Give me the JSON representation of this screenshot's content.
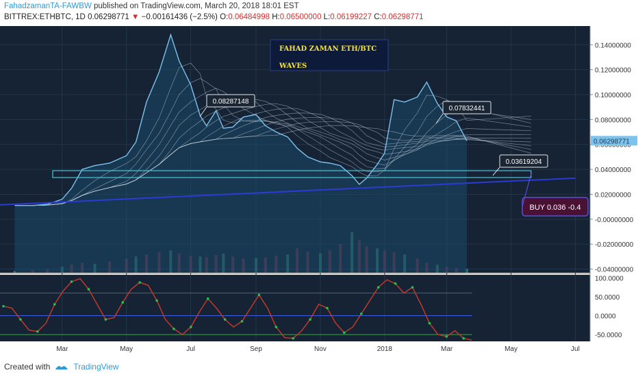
{
  "header": {
    "author": "FahadzamanTA-FAWBW",
    "published": "published on TradingView.com, March 20, 2018 18:01 EST",
    "symbol": "BITTREX:ETHBTC, 1D",
    "last": "0.06298771",
    "change": "−0.00161436 (−2.5%)",
    "o_label": "O:",
    "o": "0.06484998",
    "h_label": "H:",
    "h": "0.06500000",
    "l_label": "L:",
    "l": "0.06199227",
    "c_label": "C:",
    "c": "0.06298771"
  },
  "footer": {
    "created_with": "Created with",
    "brand": "TradingView"
  },
  "colors": {
    "panel_bg": "#152334",
    "price_line": "#7ec3ee",
    "area_fill": "#1c4a6a",
    "trendline": "#2b3bd6",
    "box": "#4fc3d9",
    "buy_box": "#4a1232",
    "buy_border": "#5a4fd6",
    "title_text": "#f5e23a",
    "osc_line": "#c0392b",
    "osc_dots": "#27c24c"
  },
  "annotations": {
    "title": "FAHAD ZAMAN ETH/BTC",
    "subtitle": "WAVES",
    "callouts": [
      "0.08287148",
      "0.07832441",
      "0.03619204"
    ],
    "buy": "BUY 0.036 -0.4",
    "price_tag": "0.06298771"
  },
  "chart_data": {
    "type": "line",
    "symbol": "BITTREX:ETHBTC",
    "interval": "1D",
    "x_ticks": [
      "Mar",
      "May",
      "Jul",
      "Sep",
      "Nov",
      "2018",
      "Mar",
      "May",
      "Jul"
    ],
    "y_ticks": [
      "0.14000000",
      "0.12000000",
      "0.10000000",
      "0.08000000",
      "0.06000000",
      "0.04000000",
      "0.02000000",
      "-0.00000000",
      "-0.02000000",
      "-0.04000000"
    ],
    "ylim": [
      -0.043,
      0.155
    ],
    "price_series": {
      "name": "ETHBTC close",
      "x": [
        "2017-01-15",
        "2017-02-01",
        "2017-02-15",
        "2017-03-01",
        "2017-03-10",
        "2017-03-20",
        "2017-04-01",
        "2017-04-15",
        "2017-05-01",
        "2017-05-10",
        "2017-05-20",
        "2017-06-01",
        "2017-06-12",
        "2017-06-20",
        "2017-07-01",
        "2017-07-10",
        "2017-07-16",
        "2017-07-25",
        "2017-08-01",
        "2017-08-10",
        "2017-08-20",
        "2017-09-01",
        "2017-09-10",
        "2017-09-20",
        "2017-10-01",
        "2017-10-10",
        "2017-10-20",
        "2017-11-01",
        "2017-11-10",
        "2017-11-20",
        "2017-12-01",
        "2017-12-08",
        "2017-12-15",
        "2017-12-25",
        "2018-01-01",
        "2018-01-10",
        "2018-01-20",
        "2018-02-01",
        "2018-02-10",
        "2018-02-20",
        "2018-03-01",
        "2018-03-10",
        "2018-03-20"
      ],
      "values": [
        0.011,
        0.011,
        0.012,
        0.016,
        0.025,
        0.04,
        0.043,
        0.045,
        0.051,
        0.062,
        0.094,
        0.118,
        0.148,
        0.127,
        0.108,
        0.083,
        0.075,
        0.087,
        0.073,
        0.074,
        0.082,
        0.084,
        0.075,
        0.07,
        0.066,
        0.057,
        0.05,
        0.046,
        0.045,
        0.043,
        0.035,
        0.028,
        0.033,
        0.044,
        0.053,
        0.096,
        0.094,
        0.098,
        0.11,
        0.093,
        0.082,
        0.079,
        0.063
      ]
    },
    "ribbon_last_values": [
      0.0828,
      0.08,
      0.077,
      0.074,
      0.071,
      0.068,
      0.065,
      0.062,
      0.059,
      0.056,
      0.053
    ],
    "support_level": 0.03619204,
    "trendline": {
      "from": [
        "2017-01-01",
        0.0115
      ],
      "to": [
        "2018-07-01",
        0.033
      ]
    },
    "volume": {
      "scale": [
        0,
        1
      ],
      "values": [
        0.05,
        0.06,
        0.08,
        0.15,
        0.2,
        0.25,
        0.22,
        0.28,
        0.35,
        0.4,
        0.45,
        0.5,
        0.55,
        0.48,
        0.42,
        0.4,
        0.38,
        0.44,
        0.47,
        0.4,
        0.35,
        0.36,
        0.38,
        0.42,
        0.45,
        0.6,
        0.52,
        0.48,
        0.55,
        0.7,
        1.0,
        0.8,
        0.65,
        0.6,
        0.55,
        0.5,
        0.45,
        0.35,
        0.25,
        0.2,
        0.15,
        0.12,
        0.1
      ]
    },
    "oscillator": {
      "y_ticks": [
        "100.0000",
        "50.0000",
        "0.0000",
        "-50.0000"
      ],
      "ylim": [
        -68,
        108
      ],
      "levels": [
        60,
        0,
        -50
      ],
      "values": [
        25,
        20,
        -10,
        -38,
        -42,
        -20,
        30,
        65,
        90,
        98,
        70,
        30,
        -10,
        -5,
        35,
        70,
        88,
        80,
        40,
        -10,
        -35,
        -50,
        -30,
        10,
        45,
        20,
        -10,
        -30,
        -15,
        20,
        55,
        20,
        -30,
        -58,
        -60,
        -40,
        -10,
        30,
        20,
        -20,
        -45,
        -30,
        5,
        40,
        75,
        95,
        85,
        60,
        75,
        30,
        -20,
        -50,
        -55,
        -40,
        -60,
        -65
      ]
    }
  }
}
